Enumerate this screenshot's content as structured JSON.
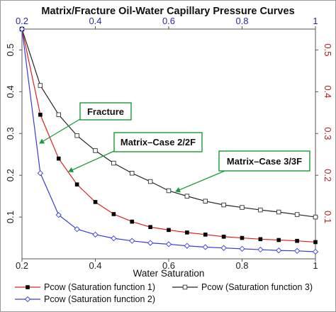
{
  "chart_data": {
    "type": "line",
    "title": "Matrix/Fracture Oil-Water Capillary Pressure Curves",
    "xlabel": "Water Saturation",
    "ylabel": "",
    "xlim": [
      0.2,
      1.0
    ],
    "ylim": [
      0.0,
      0.55
    ],
    "x_ticks": [
      "0.2",
      "0.4",
      "0.6",
      "0.8",
      "1"
    ],
    "y_ticks": [
      "0.1",
      "0.2",
      "0.3",
      "0.4",
      "0.5"
    ],
    "grid": false,
    "legend_position": "bottom",
    "series": [
      {
        "name": "Pcow (Saturation function 1)",
        "color": "#e02020",
        "marker": "filled-square",
        "x": [
          0.2,
          0.25,
          0.3,
          0.35,
          0.4,
          0.45,
          0.5,
          0.55,
          0.6,
          0.65,
          0.7,
          0.75,
          0.8,
          0.85,
          0.9,
          0.95,
          1.0
        ],
        "y": [
          0.55,
          0.345,
          0.24,
          0.178,
          0.136,
          0.107,
          0.089,
          0.076,
          0.069,
          0.063,
          0.058,
          0.053,
          0.05,
          0.047,
          0.045,
          0.043,
          0.04
        ]
      },
      {
        "name": "Pcow (Saturation function 3)",
        "color": "#222222",
        "marker": "hollow-square",
        "x": [
          0.2,
          0.25,
          0.3,
          0.35,
          0.4,
          0.45,
          0.5,
          0.55,
          0.6,
          0.65,
          0.7,
          0.75,
          0.8,
          0.85,
          0.9,
          0.95,
          1.0
        ],
        "y": [
          0.55,
          0.415,
          0.345,
          0.295,
          0.259,
          0.229,
          0.205,
          0.185,
          0.163,
          0.15,
          0.138,
          0.129,
          0.123,
          0.117,
          0.112,
          0.106,
          0.1
        ]
      },
      {
        "name": "Pcow (Saturation function 2)",
        "color": "#3a3ae0",
        "marker": "hollow-diamond",
        "x": [
          0.2,
          0.25,
          0.3,
          0.35,
          0.4,
          0.45,
          0.5,
          0.55,
          0.6,
          0.65,
          0.7,
          0.75,
          0.8,
          0.85,
          0.9,
          0.95,
          1.0
        ],
        "y": [
          0.55,
          0.205,
          0.105,
          0.071,
          0.058,
          0.049,
          0.043,
          0.038,
          0.035,
          0.031,
          0.028,
          0.026,
          0.024,
          0.022,
          0.02,
          0.019,
          0.017
        ]
      }
    ],
    "annotations": [
      {
        "text": "Fracture"
      },
      {
        "text": "Matrix–Case 2/2F"
      },
      {
        "text": "Matrix–Case 3/3F"
      }
    ]
  },
  "annotation_style": {
    "border_color": "#1a9a3a",
    "arrow_color": "#1a9a3a"
  }
}
